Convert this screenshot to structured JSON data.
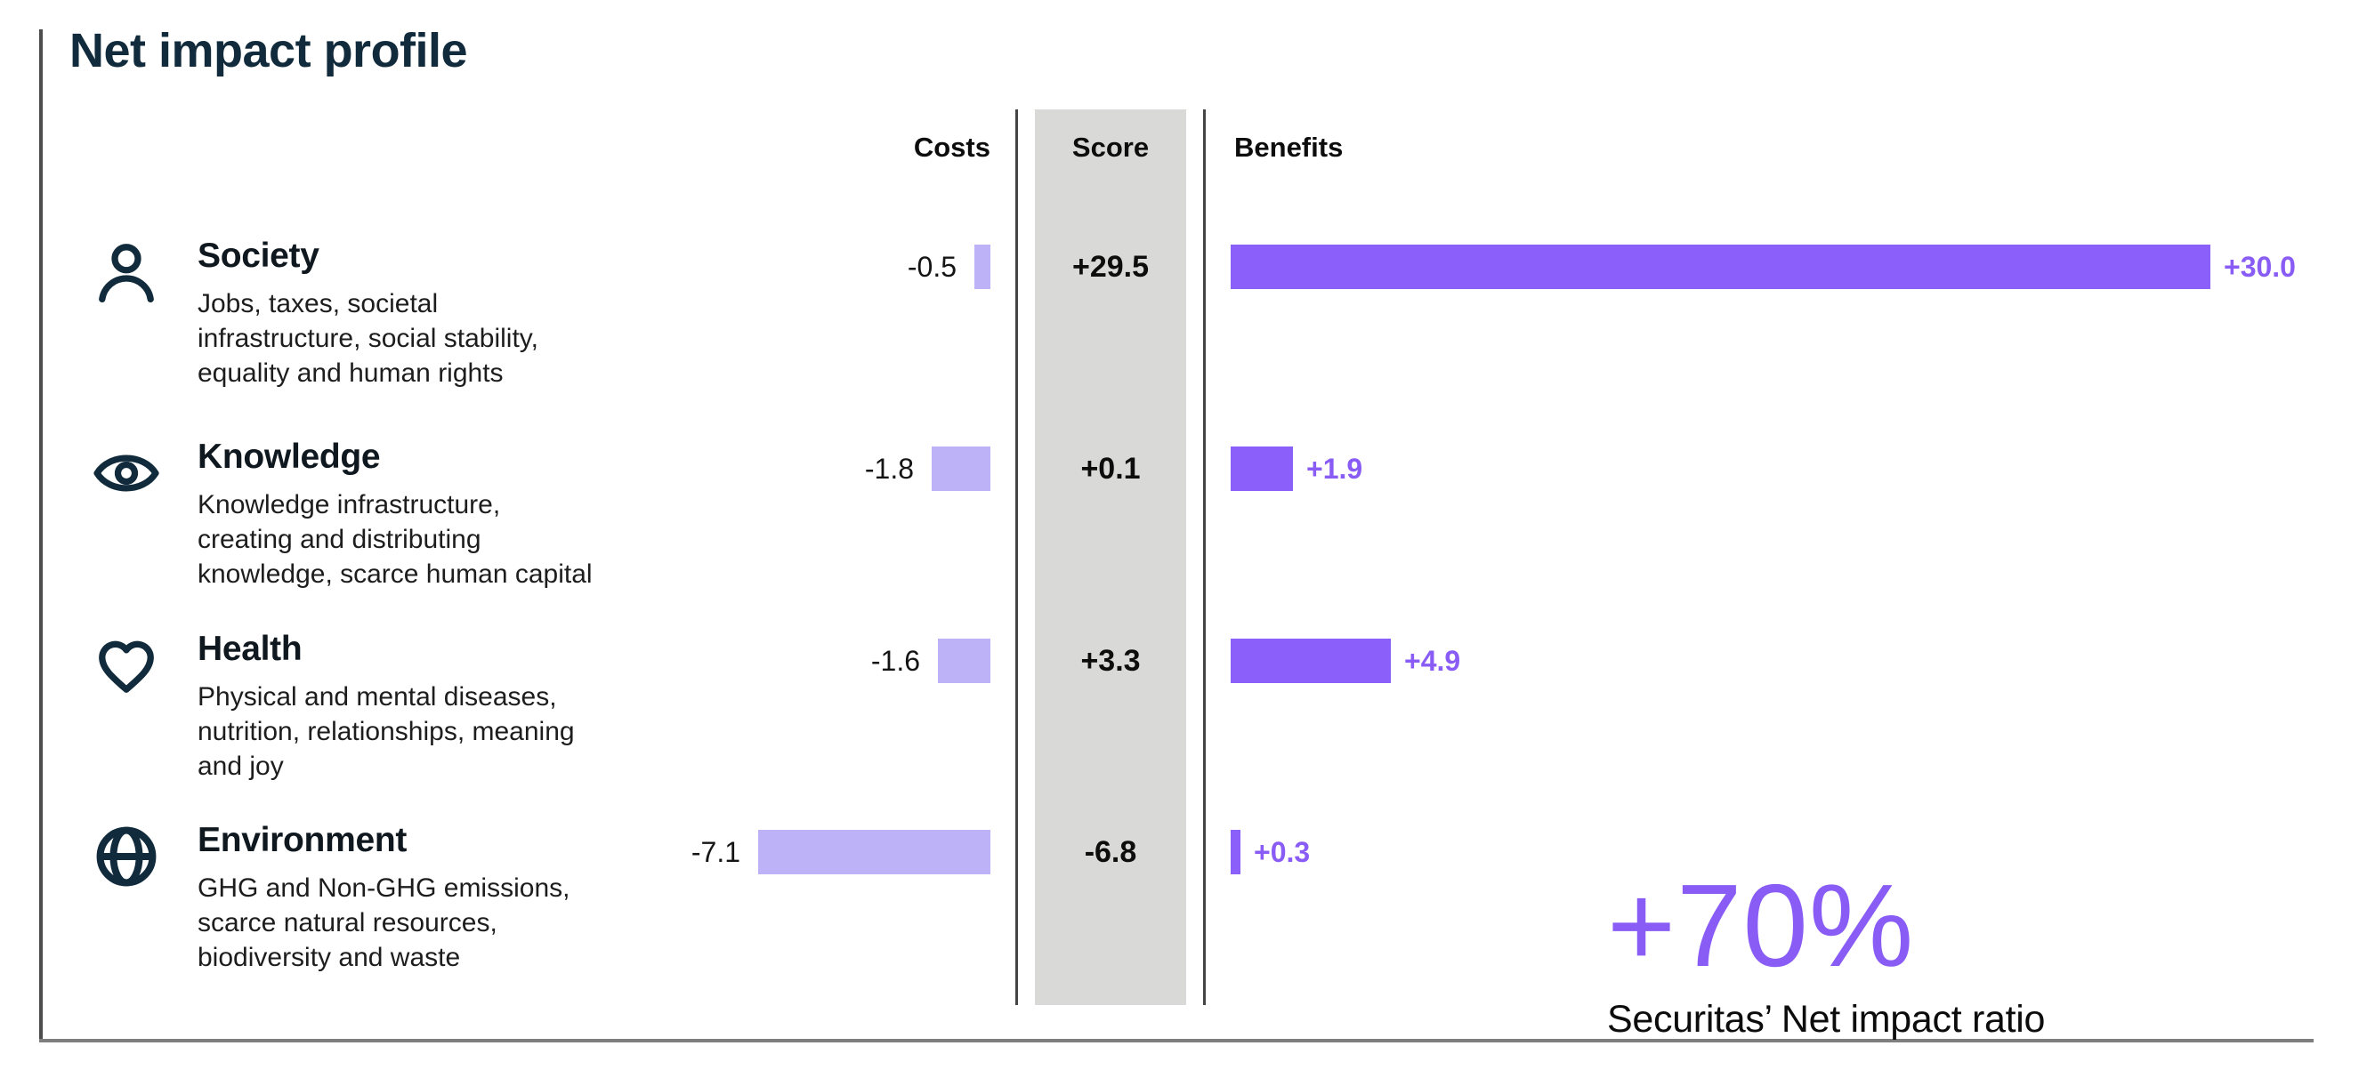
{
  "chart_data": {
    "type": "bar",
    "title": "Net impact profile",
    "columns": {
      "costs": "Costs",
      "score": "Score",
      "benefits": "Benefits"
    },
    "rows": [
      {
        "category": "Society",
        "icon": "person-icon",
        "description": "Jobs, taxes, societal\ninfrastructure, social stability,\nequality and human rights",
        "costs": -0.5,
        "score": 29.5,
        "benefits": 30.0,
        "costs_label": "-0.5",
        "score_label": "+29.5",
        "benefits_label": "+30.0"
      },
      {
        "category": "Knowledge",
        "icon": "eye-icon",
        "description": "Knowledge infrastructure,\ncreating and distributing\nknowledge, scarce human capital",
        "costs": -1.8,
        "score": 0.1,
        "benefits": 1.9,
        "costs_label": "-1.8",
        "score_label": "+0.1",
        "benefits_label": "+1.9"
      },
      {
        "category": "Health",
        "icon": "heart-icon",
        "description": "Physical and mental diseases,\nnutrition, relationships, meaning\nand joy",
        "costs": -1.6,
        "score": 3.3,
        "benefits": 4.9,
        "costs_label": "-1.6",
        "score_label": "+3.3",
        "benefits_label": "+4.9"
      },
      {
        "category": "Environment",
        "icon": "globe-icon",
        "description": "GHG and Non-GHG emissions,\nscarce natural resources,\nbiodiversity and waste",
        "costs": -7.1,
        "score": -6.8,
        "benefits": 0.3,
        "costs_label": "-7.1",
        "score_label": "-6.8",
        "benefits_label": "+0.3"
      }
    ],
    "callout": {
      "value": "+70%",
      "caption": "Securitas’ Net impact ratio"
    },
    "colors": {
      "benefit_bar": "#8b5ffa",
      "cost_bar": "#bdb1f8",
      "score_band": "#d9d9d7",
      "accent_purple": "#8a5cf6",
      "title_navy": "#112b3c"
    },
    "layout_hints": {
      "value_axis_hidden": true,
      "approx_value_range": [
        -7.1,
        30.0
      ],
      "grid": false
    }
  }
}
